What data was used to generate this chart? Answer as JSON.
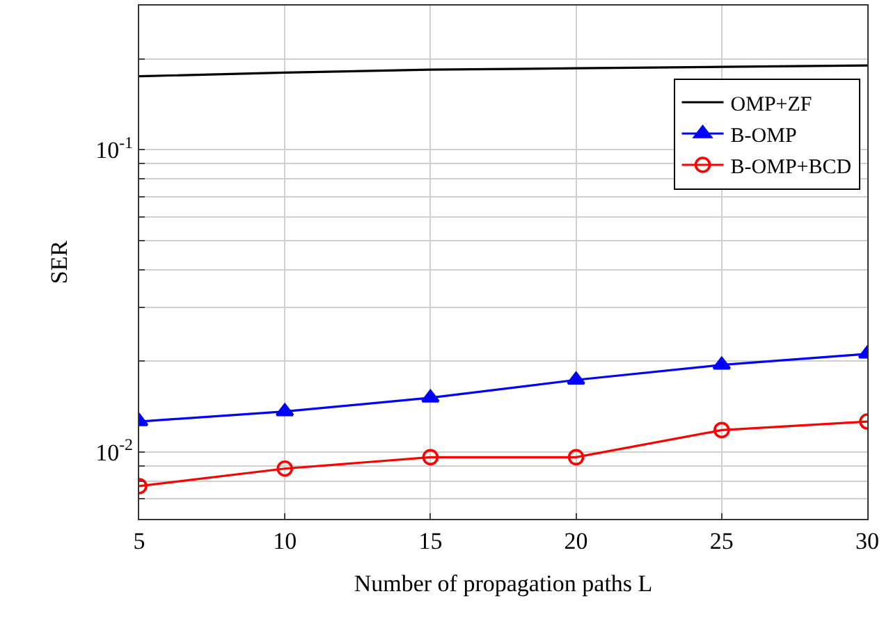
{
  "chart_data": {
    "type": "line",
    "xlabel": "Number of propagation paths L",
    "ylabel": "SER",
    "x": [
      5,
      10,
      15,
      20,
      25,
      30
    ],
    "series": [
      {
        "name": "OMP+ZF",
        "color": "#000000",
        "marker": "none",
        "values": [
          0.175,
          0.18,
          0.184,
          0.186,
          0.188,
          0.19
        ]
      },
      {
        "name": "B-OMP",
        "color": "#0000ff",
        "marker": "triangle",
        "values": [
          0.0126,
          0.0136,
          0.0151,
          0.0173,
          0.0194,
          0.0211
        ]
      },
      {
        "name": "B-OMP+BCD",
        "color": "#ff0000",
        "marker": "circle",
        "values": [
          0.0077,
          0.0088,
          0.0096,
          0.0096,
          0.0118,
          0.0126
        ]
      }
    ],
    "log": "y",
    "xlim": [
      5,
      30
    ],
    "xticks": [
      5,
      10,
      15,
      20,
      25,
      30
    ],
    "ylim": [
      0.006,
      0.3
    ],
    "yticks": [
      {
        "value": 0.007,
        "label": null
      },
      {
        "value": 0.008,
        "label": null
      },
      {
        "value": 0.009,
        "label": null
      },
      {
        "value": 0.01,
        "label": "10$^{-2}$"
      },
      {
        "value": 0.02,
        "label": null
      },
      {
        "value": 0.03,
        "label": null
      },
      {
        "value": 0.04,
        "label": null
      },
      {
        "value": 0.05,
        "label": null
      },
      {
        "value": 0.06,
        "label": null
      },
      {
        "value": 0.07,
        "label": null
      },
      {
        "value": 0.08,
        "label": null
      },
      {
        "value": 0.09,
        "label": null
      },
      {
        "value": 0.1,
        "label": "10$^{-1}$"
      },
      {
        "value": 0.2,
        "label": null
      }
    ],
    "grid": true,
    "legend": "right"
  }
}
